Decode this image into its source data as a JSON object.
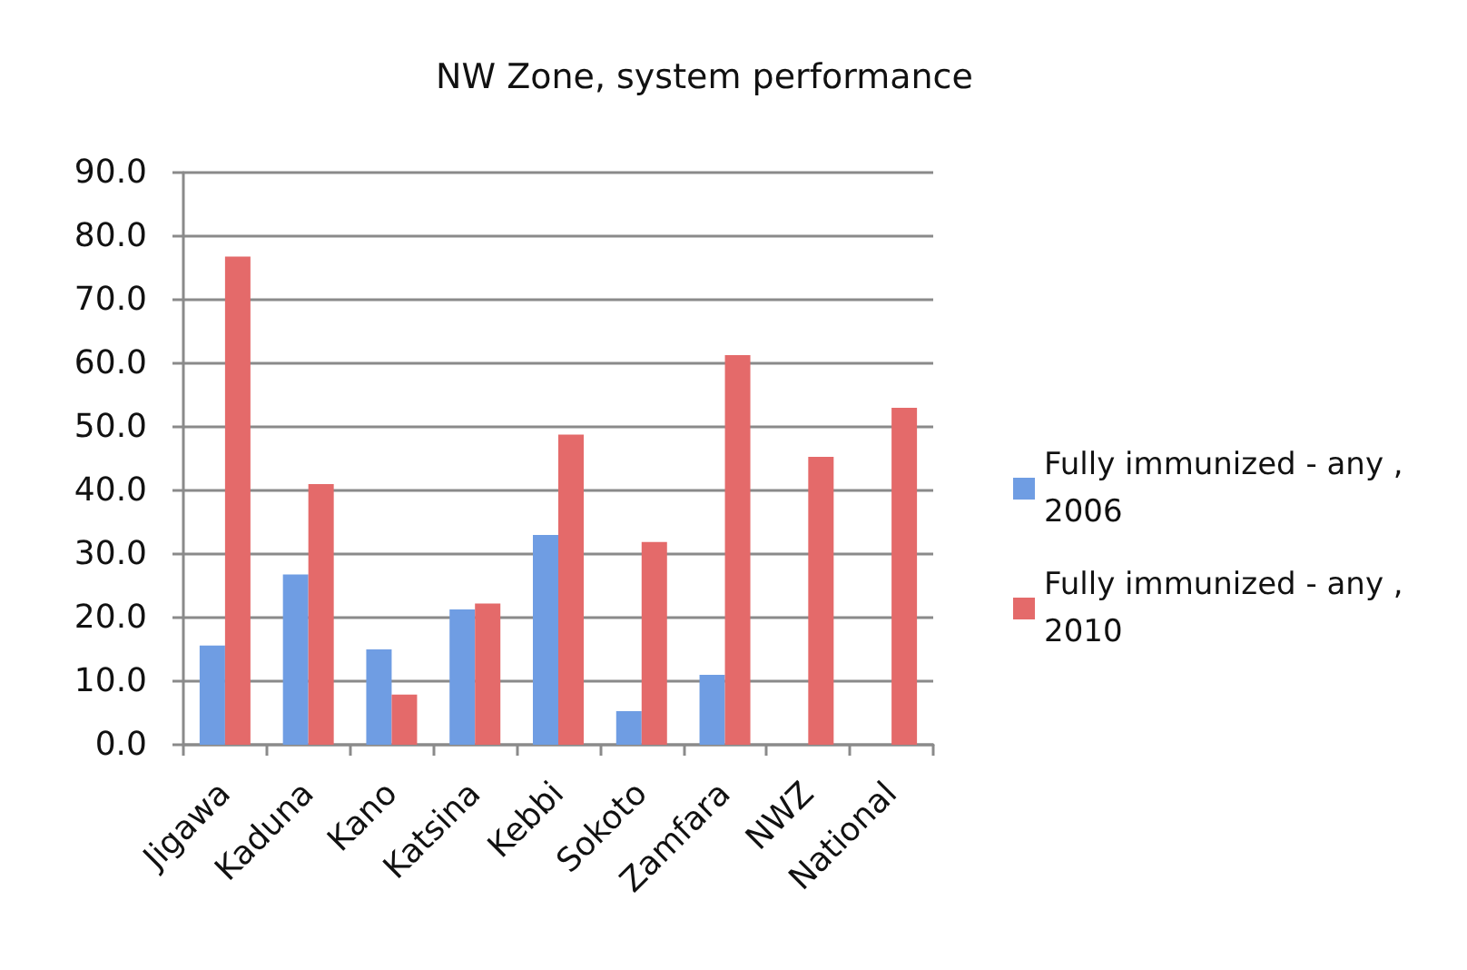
{
  "chart_data": {
    "type": "bar",
    "title": "NW Zone, system performance",
    "categories": [
      "Jigawa",
      "Kaduna",
      "Kano",
      "Katsina",
      "Kebbi",
      "Sokoto",
      "Zamfara",
      "NWZ",
      "National"
    ],
    "series": [
      {
        "name": "Fully immunized - any , 2006",
        "color": "#6f9de3",
        "values": [
          15.6,
          26.8,
          15.0,
          21.3,
          33.0,
          5.3,
          11.0,
          null,
          null
        ]
      },
      {
        "name": "Fully immunized - any , 2010",
        "color": "#e46a6a",
        "values": [
          76.8,
          41.0,
          7.9,
          22.2,
          48.8,
          31.9,
          61.3,
          45.3,
          53.0
        ]
      }
    ],
    "ylim": [
      0,
      90
    ],
    "yticks": [
      {
        "value": 0,
        "label": "0.0"
      },
      {
        "value": 10,
        "label": "10.0"
      },
      {
        "value": 20,
        "label": "20.0"
      },
      {
        "value": 30,
        "label": "30.0"
      },
      {
        "value": 40,
        "label": "40.0"
      },
      {
        "value": 50,
        "label": "50.0"
      },
      {
        "value": 60,
        "label": "60.0"
      },
      {
        "value": 70,
        "label": "70.0"
      },
      {
        "value": 80,
        "label": "80.0"
      },
      {
        "value": 90,
        "label": "90.0"
      }
    ],
    "grid": "y",
    "legend": "right"
  }
}
